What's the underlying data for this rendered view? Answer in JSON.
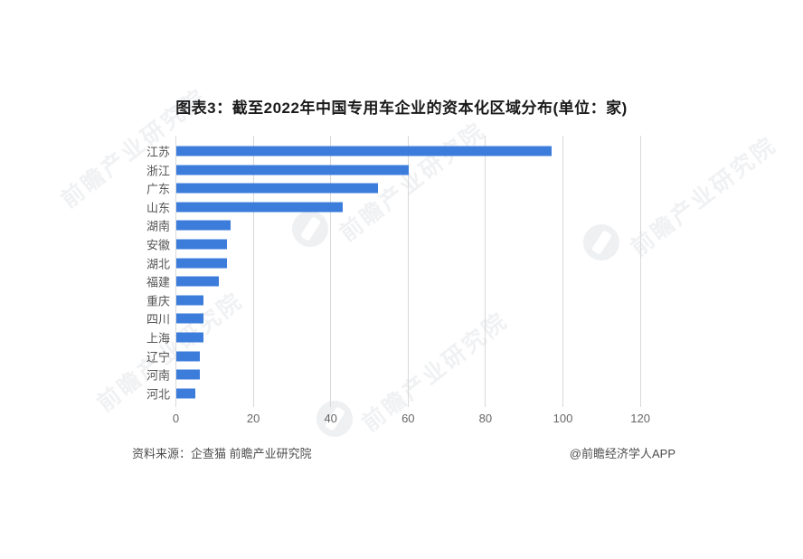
{
  "title": "图表3：截至2022年中国专用车企业的资本化区域分布(单位：家)",
  "footer": {
    "source_left": "资料来源：企查猫 前瞻产业研究院",
    "credit_right": "@前瞻经济学人APP"
  },
  "watermark": {
    "text": "前瞻产业研究院"
  },
  "colors": {
    "bar_blue": "#3C7DDC",
    "grid_gray": "#d9d9d9",
    "title_text": "#1a1a1a",
    "category_text": "#545454",
    "tick_text": "#666666",
    "source_text": "#4d4d4d",
    "background": "#ffffff"
  },
  "chart_data": {
    "type": "bar",
    "orientation": "horizontal",
    "title": "图表3：截至2022年中国专用车企业的资本化区域分布(单位：家)",
    "unit": "家",
    "categories": [
      "江苏",
      "浙江",
      "广东",
      "山东",
      "湖南",
      "安徽",
      "湖北",
      "福建",
      "重庆",
      "四川",
      "上海",
      "辽宁",
      "河南",
      "河北"
    ],
    "values": [
      97,
      60,
      52,
      43,
      14,
      13,
      13,
      11,
      7,
      7,
      7,
      6,
      6,
      5
    ],
    "xlabel": "",
    "ylabel": "",
    "xlim": [
      0,
      120
    ],
    "xticks": [
      0,
      20,
      40,
      60,
      80,
      100,
      120
    ],
    "grid": "vertical-only",
    "legend": "none"
  }
}
